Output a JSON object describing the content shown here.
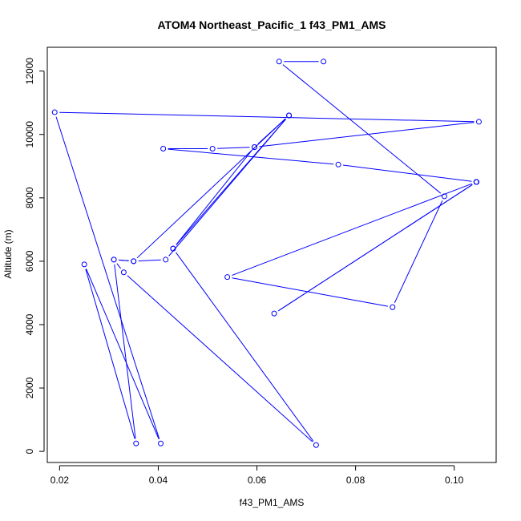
{
  "chart_data": {
    "type": "line",
    "title": "ATOM4 Northeast_Pacific_1 f43_PM1_AMS",
    "xlabel": "f43_PM1_AMS",
    "ylabel": "Altitude (m)",
    "xlim": [
      0.0175,
      0.1085
    ],
    "ylim": [
      -350,
      12750
    ],
    "x_ticks": [
      0.02,
      0.04,
      0.06,
      0.08,
      0.1
    ],
    "x_tick_labels": [
      "0.02",
      "0.04",
      "0.06",
      "0.08",
      "0.10"
    ],
    "y_ticks": [
      0,
      2000,
      4000,
      6000,
      8000,
      10000,
      12000
    ],
    "y_tick_labels": [
      "0",
      "2000",
      "4000",
      "6000",
      "8000",
      "10000",
      "12000"
    ],
    "grid": false,
    "legend": "none",
    "color": "#0000ff",
    "points": [
      {
        "x": 0.0735,
        "y": 12300
      },
      {
        "x": 0.0645,
        "y": 12300
      },
      {
        "x": 0.098,
        "y": 8050
      },
      {
        "x": 0.0875,
        "y": 4550
      },
      {
        "x": 0.054,
        "y": 5500
      },
      {
        "x": 0.1045,
        "y": 8500
      },
      {
        "x": 0.0635,
        "y": 4350
      },
      {
        "x": 0.1045,
        "y": 8500
      },
      {
        "x": 0.1045,
        "y": 8500
      },
      {
        "x": 0.1045,
        "y": 8500
      },
      {
        "x": 0.1045,
        "y": 8500
      },
      {
        "x": 0.0765,
        "y": 9050
      },
      {
        "x": 0.041,
        "y": 9550
      },
      {
        "x": 0.051,
        "y": 9550
      },
      {
        "x": 0.0595,
        "y": 9600
      },
      {
        "x": 0.105,
        "y": 10400
      },
      {
        "x": 0.019,
        "y": 10700
      },
      {
        "x": 0.0405,
        "y": 250
      },
      {
        "x": 0.025,
        "y": 5900
      },
      {
        "x": 0.0355,
        "y": 250
      },
      {
        "x": 0.031,
        "y": 6050
      },
      {
        "x": 0.035,
        "y": 6000
      },
      {
        "x": 0.0665,
        "y": 10600
      },
      {
        "x": 0.043,
        "y": 6400
      },
      {
        "x": 0.0595,
        "y": 9600
      },
      {
        "x": 0.0665,
        "y": 10600
      },
      {
        "x": 0.0415,
        "y": 6050
      },
      {
        "x": 0.035,
        "y": 6000
      },
      {
        "x": 0.031,
        "y": 6050
      },
      {
        "x": 0.033,
        "y": 5650
      },
      {
        "x": 0.072,
        "y": 200
      },
      {
        "x": 0.043,
        "y": 6400
      }
    ]
  }
}
